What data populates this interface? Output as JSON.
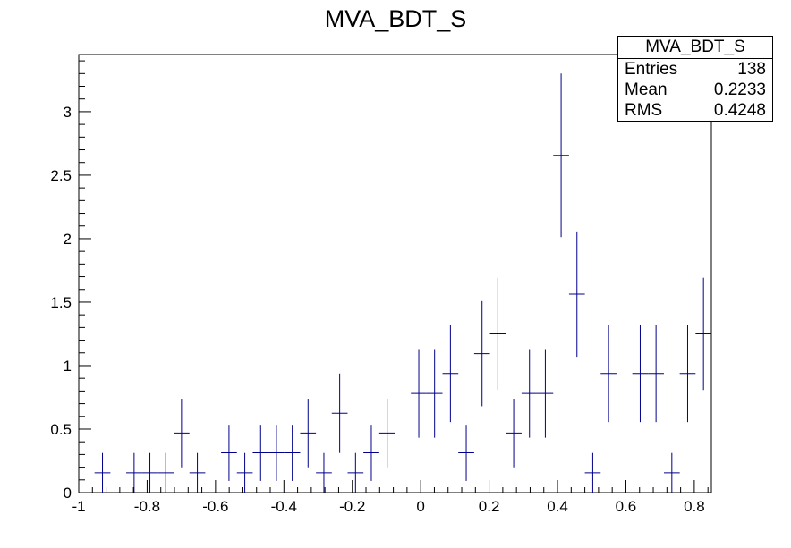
{
  "chart_data": {
    "type": "scatter",
    "title": "MVA_BDT_S",
    "xlabel": "",
    "ylabel": "",
    "xlim": [
      -1,
      0.85
    ],
    "ylim": [
      0,
      3.45
    ],
    "x_ticks": [
      "-1",
      "-0.8",
      "-0.6",
      "-0.4",
      "-0.2",
      "0",
      "0.2",
      "0.4",
      "0.6",
      "0.8"
    ],
    "y_ticks": [
      "0",
      "0.5",
      "1",
      "1.5",
      "2",
      "2.5",
      "3"
    ],
    "bin_width": 0.04625,
    "series": [
      {
        "color": "#00008b",
        "points": [
          {
            "x": -0.9306,
            "y": 0.156,
            "err": 0.156
          },
          {
            "x": -0.8381,
            "y": 0.156,
            "err": 0.156
          },
          {
            "x": -0.7919,
            "y": 0.156,
            "err": 0.156
          },
          {
            "x": -0.7456,
            "y": 0.156,
            "err": 0.156
          },
          {
            "x": -0.6994,
            "y": 0.469,
            "err": 0.27
          },
          {
            "x": -0.6531,
            "y": 0.156,
            "err": 0.156
          },
          {
            "x": -0.5606,
            "y": 0.313,
            "err": 0.221
          },
          {
            "x": -0.5144,
            "y": 0.156,
            "err": 0.156
          },
          {
            "x": -0.4681,
            "y": 0.313,
            "err": 0.221
          },
          {
            "x": -0.4219,
            "y": 0.313,
            "err": 0.221
          },
          {
            "x": -0.3756,
            "y": 0.313,
            "err": 0.221
          },
          {
            "x": -0.3294,
            "y": 0.469,
            "err": 0.27
          },
          {
            "x": -0.2831,
            "y": 0.156,
            "err": 0.156
          },
          {
            "x": -0.2369,
            "y": 0.625,
            "err": 0.313
          },
          {
            "x": -0.1906,
            "y": 0.156,
            "err": 0.156
          },
          {
            "x": -0.1444,
            "y": 0.313,
            "err": 0.221
          },
          {
            "x": -0.0981,
            "y": 0.469,
            "err": 0.27
          },
          {
            "x": -0.0056,
            "y": 0.781,
            "err": 0.349
          },
          {
            "x": 0.0406,
            "y": 0.781,
            "err": 0.349
          },
          {
            "x": 0.0869,
            "y": 0.938,
            "err": 0.383
          },
          {
            "x": 0.1331,
            "y": 0.313,
            "err": 0.221
          },
          {
            "x": 0.1794,
            "y": 1.094,
            "err": 0.414
          },
          {
            "x": 0.2256,
            "y": 1.25,
            "err": 0.442
          },
          {
            "x": 0.2719,
            "y": 0.469,
            "err": 0.27
          },
          {
            "x": 0.3181,
            "y": 0.781,
            "err": 0.349
          },
          {
            "x": 0.3644,
            "y": 0.781,
            "err": 0.349
          },
          {
            "x": 0.4106,
            "y": 2.656,
            "err": 0.644
          },
          {
            "x": 0.4569,
            "y": 1.563,
            "err": 0.494
          },
          {
            "x": 0.5031,
            "y": 0.156,
            "err": 0.156
          },
          {
            "x": 0.5494,
            "y": 0.938,
            "err": 0.383
          },
          {
            "x": 0.6419,
            "y": 0.938,
            "err": 0.383
          },
          {
            "x": 0.6881,
            "y": 0.938,
            "err": 0.383
          },
          {
            "x": 0.7344,
            "y": 0.156,
            "err": 0.156
          },
          {
            "x": 0.7806,
            "y": 0.938,
            "err": 0.383
          },
          {
            "x": 0.8269,
            "y": 1.25,
            "err": 0.442
          }
        ]
      }
    ],
    "stats": {
      "name": "MVA_BDT_S",
      "rows": [
        {
          "label": "Entries",
          "value": "138"
        },
        {
          "label": "Mean",
          "value": "0.2233"
        },
        {
          "label": "RMS",
          "value": "0.4248"
        }
      ]
    },
    "grid": false,
    "legend": "top-right"
  }
}
